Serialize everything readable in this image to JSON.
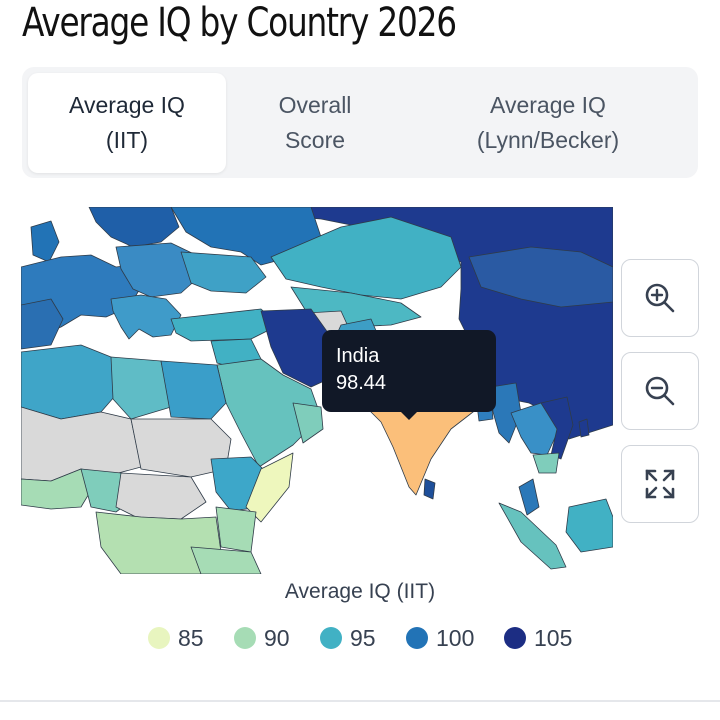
{
  "page": {
    "title": "Average IQ by Country 2026"
  },
  "tabs": [
    {
      "label_line1": "Average IQ",
      "label_line2": "(IIT)",
      "active": true
    },
    {
      "label_line1": "Overall",
      "label_line2": "Score",
      "active": false
    },
    {
      "label_line1": "Average IQ",
      "label_line2": "(Lynn/Becker)",
      "active": false
    }
  ],
  "map": {
    "tooltip": {
      "country": "India",
      "value": "98.44"
    },
    "controls": {
      "zoom_in_icon": "zoom-in-icon",
      "zoom_out_icon": "zoom-out-icon",
      "fit_icon": "expand-icon"
    }
  },
  "legend": {
    "title": "Average IQ (IIT)",
    "items": [
      {
        "label": "85",
        "color": "#e8f5bf"
      },
      {
        "label": "90",
        "color": "#a6dcb5"
      },
      {
        "label": "95",
        "color": "#41b1c4"
      },
      {
        "label": "100",
        "color": "#2273b6"
      },
      {
        "label": "105",
        "color": "#1c2d83"
      }
    ]
  },
  "colors": {
    "no_data": "#d9d9d9",
    "highlight": "#fbbf7a",
    "ocean": "#ffffff"
  }
}
